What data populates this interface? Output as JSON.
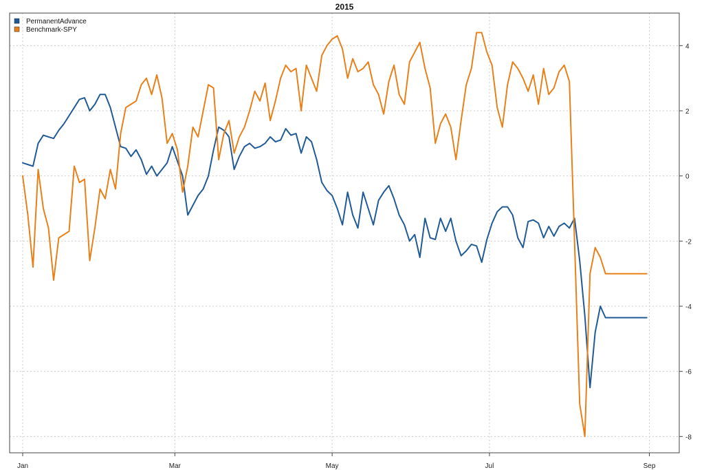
{
  "chart_data": {
    "type": "line",
    "title": "2015",
    "xlabel": "",
    "ylabel": "",
    "x_ticks": [
      {
        "label": "Jan",
        "day": 1
      },
      {
        "label": "Mar",
        "day": 60
      },
      {
        "label": "May",
        "day": 121
      },
      {
        "label": "Jul",
        "day": 182
      },
      {
        "label": "Sep",
        "day": 244
      }
    ],
    "xlim": [
      1,
      246
    ],
    "ylim": [
      -8.5,
      5
    ],
    "yticks": [
      -8,
      -6,
      -4,
      -2,
      0,
      2,
      4
    ],
    "y_axis_side": "right",
    "grid": true,
    "legend_position": "top-left",
    "series": [
      {
        "name": "PermanentAdvance",
        "color": "#1f5a96",
        "x": [
          1,
          5,
          7,
          9,
          11,
          13,
          15,
          17,
          19,
          21,
          23,
          25,
          27,
          29,
          31,
          33,
          35,
          37,
          39,
          41,
          43,
          45,
          47,
          49,
          51,
          53,
          55,
          57,
          59,
          61,
          63,
          65,
          67,
          69,
          71,
          73,
          75,
          77,
          79,
          81,
          83,
          85,
          87,
          89,
          91,
          93,
          95,
          97,
          99,
          101,
          103,
          105,
          107,
          109,
          111,
          113,
          115,
          117,
          119,
          121,
          123,
          125,
          127,
          129,
          131,
          133,
          135,
          137,
          139,
          141,
          143,
          145,
          147,
          149,
          151,
          153,
          155,
          157,
          159,
          161,
          163,
          165,
          167,
          169,
          171,
          173,
          175,
          177,
          179,
          181,
          183,
          185,
          187,
          189,
          191,
          193,
          195,
          197,
          199,
          201,
          203,
          205,
          207,
          209,
          211,
          213,
          215,
          217,
          219,
          221,
          223,
          225,
          227,
          229,
          231,
          233,
          235,
          237,
          239,
          241,
          243
        ],
        "values": [
          0.4,
          0.3,
          1.0,
          1.25,
          1.2,
          1.15,
          1.4,
          1.6,
          1.85,
          2.1,
          2.35,
          2.4,
          2.0,
          2.2,
          2.5,
          2.5,
          2.1,
          1.5,
          0.9,
          0.85,
          0.6,
          0.8,
          0.5,
          0.05,
          0.3,
          0.0,
          0.2,
          0.4,
          0.9,
          0.45,
          0.0,
          -1.2,
          -0.9,
          -0.6,
          -0.4,
          0.0,
          0.8,
          1.5,
          1.4,
          1.2,
          0.2,
          0.6,
          0.9,
          1.0,
          0.85,
          0.9,
          1.0,
          1.2,
          1.05,
          1.1,
          1.45,
          1.25,
          1.3,
          0.7,
          1.2,
          1.05,
          0.5,
          -0.2,
          -0.45,
          -0.6,
          -1.0,
          -1.5,
          -0.5,
          -1.2,
          -1.6,
          -0.5,
          -1.0,
          -1.5,
          -0.75,
          -0.5,
          -0.3,
          -0.7,
          -1.2,
          -1.5,
          -2.0,
          -1.8,
          -2.5,
          -1.3,
          -1.9,
          -1.95,
          -1.3,
          -1.7,
          -1.3,
          -2.0,
          -2.45,
          -2.3,
          -2.1,
          -2.15,
          -2.65,
          -1.95,
          -1.45,
          -1.1,
          -0.95,
          -0.95,
          -1.2,
          -1.9,
          -2.2,
          -1.4,
          -1.35,
          -1.45,
          -1.9,
          -1.55,
          -1.85,
          -1.55,
          -1.45,
          -1.6,
          -1.3,
          -2.6,
          -4.3,
          -6.5,
          -4.8,
          -4.0,
          -4.35,
          -4.35,
          -4.35,
          -4.35,
          -4.35,
          -4.35,
          -4.35,
          -4.35,
          -4.35
        ],
        "values_note_hidden": ""
      },
      {
        "name": "Benchmark-SPY",
        "color": "#e8801a",
        "x": [
          1,
          3,
          5,
          7,
          9,
          11,
          13,
          15,
          17,
          19,
          21,
          23,
          25,
          27,
          29,
          31,
          33,
          35,
          37,
          39,
          41,
          43,
          45,
          47,
          49,
          51,
          53,
          55,
          57,
          59,
          61,
          63,
          65,
          67,
          69,
          71,
          73,
          75,
          77,
          79,
          81,
          83,
          85,
          87,
          89,
          91,
          93,
          95,
          97,
          99,
          101,
          103,
          105,
          107,
          109,
          111,
          113,
          115,
          117,
          119,
          121,
          123,
          125,
          127,
          129,
          131,
          133,
          135,
          137,
          139,
          141,
          143,
          145,
          147,
          149,
          151,
          153,
          155,
          157,
          159,
          161,
          163,
          165,
          167,
          169,
          171,
          173,
          175,
          177,
          179,
          181,
          183,
          185,
          187,
          189,
          191,
          193,
          195,
          197,
          199,
          201,
          203,
          205,
          207,
          209,
          211,
          213,
          215,
          217,
          219,
          221,
          223,
          225,
          227,
          229,
          231,
          233,
          235,
          237,
          239,
          241,
          243
        ],
        "values": [
          0.0,
          -1.2,
          -2.8,
          0.2,
          -1.0,
          -1.6,
          -3.2,
          -1.9,
          -1.8,
          -1.7,
          0.3,
          -0.2,
          -0.1,
          -2.6,
          -1.6,
          -0.4,
          -0.7,
          0.2,
          -0.4,
          1.3,
          2.1,
          2.2,
          2.3,
          2.8,
          3.0,
          2.5,
          3.1,
          2.4,
          1.0,
          1.3,
          0.8,
          -0.5,
          0.3,
          1.5,
          1.2,
          2.0,
          2.8,
          2.7,
          0.5,
          1.3,
          1.7,
          0.7,
          1.2,
          1.5,
          2.0,
          2.6,
          2.3,
          2.85,
          1.7,
          2.3,
          3.0,
          3.4,
          3.2,
          3.3,
          2.0,
          3.4,
          3.0,
          2.6,
          3.7,
          4.0,
          4.2,
          4.3,
          3.9,
          3.0,
          3.6,
          3.2,
          3.3,
          3.5,
          2.8,
          2.5,
          1.9,
          2.9,
          3.4,
          2.5,
          2.2,
          3.5,
          3.8,
          4.1,
          3.3,
          2.7,
          1.0,
          1.6,
          1.9,
          1.5,
          0.5,
          1.7,
          2.8,
          3.3,
          4.4,
          4.4,
          3.8,
          3.4,
          2.1,
          1.5,
          2.8,
          3.5,
          3.3,
          3.0,
          2.6,
          3.1,
          2.2,
          3.3,
          2.5,
          2.7,
          3.2,
          3.4,
          2.9,
          -2.0,
          -7.0,
          -8.0,
          -3.0,
          -2.2,
          -2.5,
          -3.0,
          -3.0,
          -3.0,
          -3.0,
          -3.0,
          -3.0,
          -3.0,
          -3.0,
          -3.0
        ]
      }
    ]
  }
}
